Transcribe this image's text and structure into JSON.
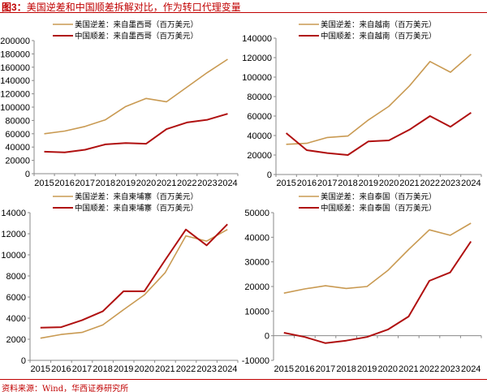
{
  "figure": {
    "label": "图3：",
    "title": "美国逆差和中国顺差拆解对比，作为转口代理变量",
    "source": "资料来源：Wind，华西证券研究所"
  },
  "colors": {
    "us": "#c99a52",
    "cn": "#b01010",
    "accent": "#c00000"
  },
  "chart_data": [
    {
      "type": "line",
      "categories": [
        "2015",
        "2016",
        "2017",
        "2018",
        "2019",
        "2020",
        "2021",
        "2022",
        "2023",
        "2024"
      ],
      "ylim": [
        0,
        200000
      ],
      "yticks": [
        "0",
        "20000",
        "40000",
        "60000",
        "80000",
        "100000",
        "120000",
        "140000",
        "160000",
        "180000",
        "200000"
      ],
      "legend": "top",
      "grid": false,
      "series": [
        {
          "name": "美国逆差：来自墨西哥（百万美元）",
          "values": [
            60000,
            64000,
            71000,
            81000,
            101000,
            113000,
            108000,
            130000,
            152000,
            172000
          ]
        },
        {
          "name": "中国顺差：来自墨西哥（百万美元）",
          "values": [
            33000,
            32000,
            36000,
            44000,
            46000,
            45000,
            67000,
            77000,
            81000,
            90000
          ]
        }
      ]
    },
    {
      "type": "line",
      "categories": [
        "2015",
        "2016",
        "2017",
        "2018",
        "2019",
        "2020",
        "2021",
        "2022",
        "2023",
        "2024"
      ],
      "ylim": [
        0,
        140000
      ],
      "yticks": [
        "0",
        "20000",
        "40000",
        "60000",
        "80000",
        "100000",
        "120000",
        "140000"
      ],
      "legend": "top",
      "grid": false,
      "series": [
        {
          "name": "美国逆差：来自越南（百万美元）",
          "values": [
            31000,
            32000,
            38000,
            39500,
            56000,
            70000,
            91000,
            116000,
            105000,
            123500
          ]
        },
        {
          "name": "中国顺差：来自越南（百万美元）",
          "values": [
            42500,
            25000,
            22000,
            20000,
            34000,
            35000,
            46000,
            60000,
            49000,
            63500
          ]
        }
      ]
    },
    {
      "type": "line",
      "categories": [
        "2015",
        "2016",
        "2017",
        "2018",
        "2019",
        "2020",
        "2021",
        "2022",
        "2023",
        "2024"
      ],
      "ylim": [
        0,
        14000
      ],
      "yticks": [
        "0",
        "2000",
        "4000",
        "6000",
        "8000",
        "10000",
        "12000",
        "14000"
      ],
      "legend": "top",
      "grid": false,
      "series": [
        {
          "name": "美国逆差：来自柬埔寨（百万美元）",
          "values": [
            2100,
            2450,
            2650,
            3350,
            4800,
            6200,
            8300,
            11800,
            11300,
            12400
          ]
        },
        {
          "name": "中国顺差：来自柬埔寨（百万美元）",
          "values": [
            3100,
            3150,
            3800,
            4650,
            6550,
            6550,
            9500,
            12400,
            10900,
            12900
          ]
        }
      ]
    },
    {
      "type": "line",
      "categories": [
        "2015",
        "2016",
        "2017",
        "2018",
        "2019",
        "2020",
        "2021",
        "2022",
        "2023",
        "2024"
      ],
      "ylim": [
        -10000,
        50000
      ],
      "yticks": [
        "-10000",
        "0",
        "10000",
        "20000",
        "30000",
        "40000",
        "50000"
      ],
      "legend": "top",
      "grid": false,
      "series": [
        {
          "name": "美国逆差：来自泰国（百万美元）",
          "values": [
            17300,
            19000,
            20300,
            19200,
            20000,
            26500,
            35000,
            43000,
            40800,
            45700
          ]
        },
        {
          "name": "中国顺差：来自泰国（百万美元）",
          "values": [
            1200,
            -500,
            -3000,
            -2000,
            -500,
            2500,
            7800,
            22300,
            25700,
            38300
          ]
        }
      ]
    }
  ]
}
